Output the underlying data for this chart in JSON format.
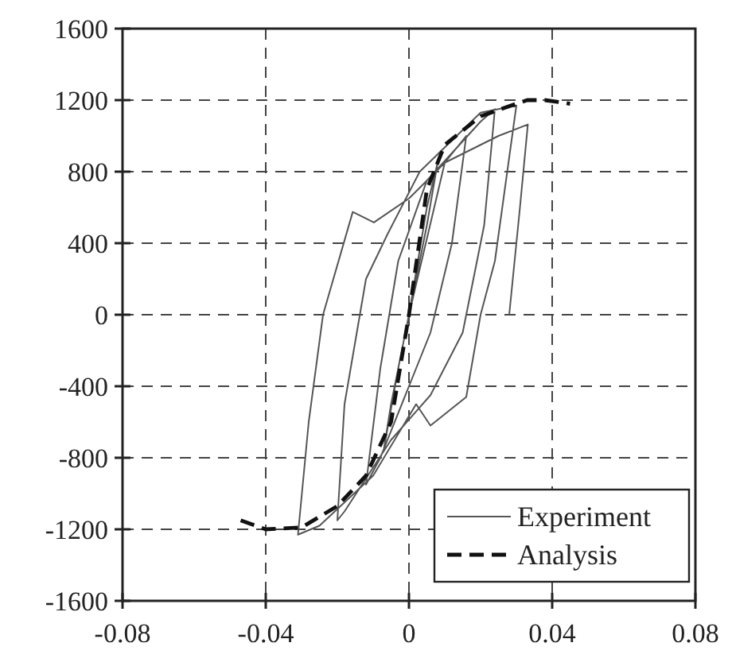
{
  "chart_data": {
    "type": "line",
    "xlim": [
      -0.08,
      0.08
    ],
    "ylim": [
      -1600,
      1600
    ],
    "xticks": [
      -0.08,
      -0.04,
      0,
      0.04,
      0.08
    ],
    "yticks": [
      -1600,
      -1200,
      -800,
      -400,
      0,
      400,
      800,
      1200,
      1600
    ],
    "grid": true,
    "legend": "bottom right",
    "marker": "none",
    "series": [
      {
        "name": "Experiment",
        "color": "#555555",
        "line_style": "solid",
        "x": [
          0,
          0.005,
          0.008,
          0.005,
          0,
          -0.005,
          -0.007,
          -0.003,
          0,
          0.01,
          0.016,
          0.012,
          0.006,
          0,
          -0.008,
          -0.012,
          -0.008,
          -0.003,
          0.005,
          0.02,
          0.024,
          0.021,
          0.015,
          0.006,
          -0.005,
          -0.018,
          -0.02,
          -0.018,
          -0.012,
          -0.006,
          0.003,
          0.02,
          0.03,
          0.024,
          0.02,
          0.016,
          0.006,
          0.002,
          -0.01,
          -0.025,
          -0.031,
          -0.028,
          -0.024,
          -0.0157,
          -0.0098,
          0,
          0.01,
          0.025,
          0.0332,
          0.031,
          0.028
        ],
        "values": [
          0,
          600,
          850,
          500,
          0,
          -500,
          -750,
          -300,
          0,
          850,
          1000,
          400,
          -100,
          -400,
          -800,
          -950,
          -300,
          300,
          750,
          1080,
          1150,
          500,
          -100,
          -450,
          -700,
          -1100,
          -1150,
          -500,
          200,
          450,
          800,
          1130,
          1170,
          300,
          0,
          -460,
          -620,
          -500,
          -900,
          -1180,
          -1230,
          -600,
          0,
          575,
          516,
          650,
          850,
          1000,
          1064,
          600,
          0
        ]
      },
      {
        "name": "Analysis",
        "color": "#111111",
        "line_style": "dashed",
        "x": [
          -0.047,
          -0.04,
          -0.03,
          -0.02,
          -0.012,
          -0.005,
          0,
          0.005,
          0.01,
          0.02,
          0.03,
          0.033,
          0.038,
          0.045
        ],
        "values": [
          -1150,
          -1200,
          -1190,
          -1070,
          -900,
          -600,
          0,
          700,
          950,
          1110,
          1180,
          1200,
          1200,
          1180
        ]
      }
    ]
  }
}
